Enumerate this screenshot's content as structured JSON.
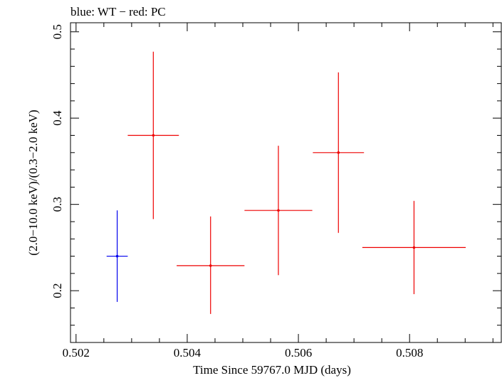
{
  "chart_data": {
    "type": "scatter",
    "title": "blue: WT − red: PC",
    "xlabel": "Time Since 59767.0 MJD (days)",
    "ylabel": "(2.0−10.0 keV)/(0.3−2.0 keV)",
    "xlim": [
      0.5019,
      0.50965
    ],
    "ylim": [
      0.14,
      0.5105
    ],
    "x_ticks": [
      "0.502",
      "0.504",
      "0.506",
      "0.508"
    ],
    "y_ticks": [
      "0.2",
      "0.3",
      "0.4",
      "0.5"
    ],
    "grid": false,
    "series": [
      {
        "name": "WT",
        "color": "#0000ee",
        "points": [
          {
            "x": 0.50274,
            "y": 0.24,
            "xerr": 0.00019,
            "yerr_lo": 0.053,
            "yerr_hi": 0.053
          }
        ]
      },
      {
        "name": "PC",
        "color": "#ee0000",
        "points": [
          {
            "x": 0.50339,
            "y": 0.38,
            "xerr": 0.00046,
            "yerr_lo": 0.097,
            "yerr_hi": 0.097
          },
          {
            "x": 0.50442,
            "y": 0.229,
            "xerr": 0.00061,
            "yerr_lo": 0.056,
            "yerr_hi": 0.057
          },
          {
            "x": 0.50564,
            "y": 0.293,
            "xerr": 0.00061,
            "yerr_lo": 0.075,
            "yerr_hi": 0.075
          },
          {
            "x": 0.50672,
            "y": 0.36,
            "xerr": 0.00046,
            "yerr_lo": 0.093,
            "yerr_hi": 0.093
          },
          {
            "x": 0.50808,
            "y": 0.25,
            "xerr": 0.00093,
            "yerr_lo": 0.054,
            "yerr_hi": 0.054
          }
        ]
      }
    ]
  }
}
